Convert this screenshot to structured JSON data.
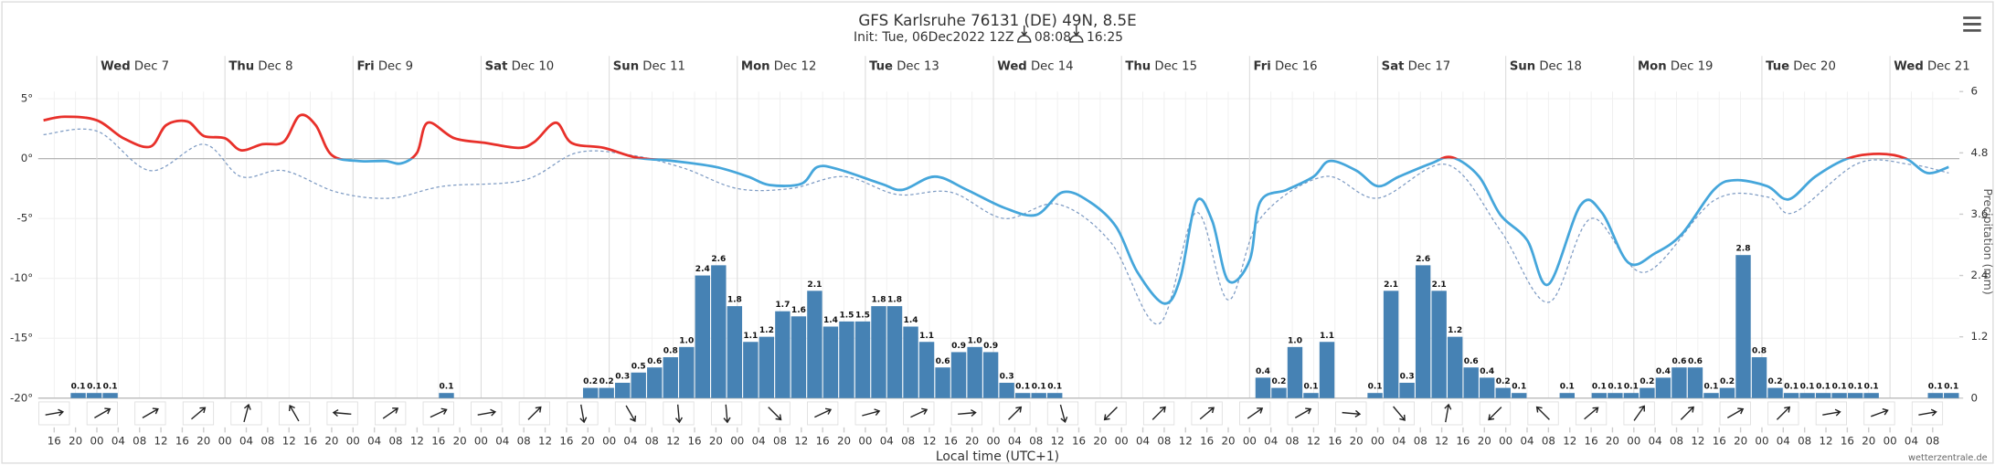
{
  "chart_data": {
    "type": "combo",
    "title": "GFS Karlsruhe 76131 (DE) 49N, 8.5E",
    "subtitle": "Init: Tue, 06Dec2022 12Z",
    "sunrise": "08:08",
    "sunset": "16:25",
    "x_label": "Local time (UTC+1)",
    "y2_label": "Precipitation (mm)",
    "credit": "wetterzentrale.de",
    "xlim": [
      -11,
      349
    ],
    "ylim": [
      -20,
      5.6
    ],
    "y2lim": [
      0,
      6
    ],
    "yticks": [
      {
        "value": 5,
        "label": "5°"
      },
      {
        "value": 0,
        "label": "0°"
      },
      {
        "value": -5,
        "label": "-5°"
      },
      {
        "value": -10,
        "label": "-10°"
      },
      {
        "value": -15,
        "label": "-15°"
      },
      {
        "value": -20,
        "label": "-20°"
      }
    ],
    "y2ticks": [
      0,
      1.2,
      2.4,
      3.6,
      4.8,
      6
    ],
    "day_ticks": [
      {
        "value": 0,
        "weekday": "Wed",
        "label": "Dec 7"
      },
      {
        "value": 24,
        "weekday": "Thu",
        "label": "Dec 8"
      },
      {
        "value": 48,
        "weekday": "Fri",
        "label": "Dec 9"
      },
      {
        "value": 72,
        "weekday": "Sat",
        "label": "Dec 10"
      },
      {
        "value": 96,
        "weekday": "Sun",
        "label": "Dec 11"
      },
      {
        "value": 120,
        "weekday": "Mon",
        "label": "Dec 12"
      },
      {
        "value": 144,
        "weekday": "Tue",
        "label": "Dec 13"
      },
      {
        "value": 168,
        "weekday": "Wed",
        "label": "Dec 14"
      },
      {
        "value": 192,
        "weekday": "Thu",
        "label": "Dec 15"
      },
      {
        "value": 216,
        "weekday": "Fri",
        "label": "Dec 16"
      },
      {
        "value": 240,
        "weekday": "Sat",
        "label": "Dec 17"
      },
      {
        "value": 264,
        "weekday": "Sun",
        "label": "Dec 18"
      },
      {
        "value": 288,
        "weekday": "Mon",
        "label": "Dec 19"
      },
      {
        "value": 312,
        "weekday": "Tue",
        "label": "Dec 20"
      },
      {
        "value": 336,
        "weekday": "Wed",
        "label": "Dec 21"
      }
    ],
    "xticks": [
      {
        "value": -8,
        "label": "16"
      },
      {
        "value": -4,
        "label": "20"
      },
      {
        "value": 0,
        "label": "00"
      },
      {
        "value": 4,
        "label": "04"
      },
      {
        "value": 8,
        "label": "08"
      },
      {
        "value": 12,
        "label": "12"
      },
      {
        "value": 16,
        "label": "16"
      },
      {
        "value": 20,
        "label": "20"
      },
      {
        "value": 24,
        "label": "00"
      },
      {
        "value": 28,
        "label": "04"
      },
      {
        "value": 32,
        "label": "08"
      },
      {
        "value": 36,
        "label": "12"
      },
      {
        "value": 40,
        "label": "16"
      },
      {
        "value": 44,
        "label": "20"
      },
      {
        "value": 48,
        "label": "00"
      },
      {
        "value": 52,
        "label": "04"
      },
      {
        "value": 56,
        "label": "08"
      },
      {
        "value": 60,
        "label": "12"
      },
      {
        "value": 64,
        "label": "16"
      },
      {
        "value": 68,
        "label": "20"
      },
      {
        "value": 72,
        "label": "00"
      },
      {
        "value": 76,
        "label": "04"
      },
      {
        "value": 80,
        "label": "08"
      },
      {
        "value": 84,
        "label": "12"
      },
      {
        "value": 88,
        "label": "16"
      },
      {
        "value": 92,
        "label": "20"
      },
      {
        "value": 96,
        "label": "00"
      },
      {
        "value": 100,
        "label": "04"
      },
      {
        "value": 104,
        "label": "08"
      },
      {
        "value": 108,
        "label": "12"
      },
      {
        "value": 112,
        "label": "16"
      },
      {
        "value": 116,
        "label": "20"
      },
      {
        "value": 120,
        "label": "00"
      },
      {
        "value": 124,
        "label": "04"
      },
      {
        "value": 128,
        "label": "08"
      },
      {
        "value": 132,
        "label": "12"
      },
      {
        "value": 136,
        "label": "16"
      },
      {
        "value": 140,
        "label": "20"
      },
      {
        "value": 144,
        "label": "00"
      },
      {
        "value": 148,
        "label": "04"
      },
      {
        "value": 152,
        "label": "08"
      },
      {
        "value": 156,
        "label": "12"
      },
      {
        "value": 160,
        "label": "16"
      },
      {
        "value": 164,
        "label": "20"
      },
      {
        "value": 168,
        "label": "00"
      },
      {
        "value": 172,
        "label": "04"
      },
      {
        "value": 176,
        "label": "08"
      },
      {
        "value": 180,
        "label": "12"
      },
      {
        "value": 184,
        "label": "16"
      },
      {
        "value": 188,
        "label": "20"
      },
      {
        "value": 192,
        "label": "00"
      },
      {
        "value": 196,
        "label": "04"
      },
      {
        "value": 200,
        "label": "08"
      },
      {
        "value": 204,
        "label": "12"
      },
      {
        "value": 208,
        "label": "16"
      },
      {
        "value": 212,
        "label": "20"
      },
      {
        "value": 216,
        "label": "00"
      },
      {
        "value": 220,
        "label": "04"
      },
      {
        "value": 224,
        "label": "08"
      },
      {
        "value": 228,
        "label": "12"
      },
      {
        "value": 232,
        "label": "16"
      },
      {
        "value": 236,
        "label": "20"
      },
      {
        "value": 240,
        "label": "00"
      },
      {
        "value": 244,
        "label": "04"
      },
      {
        "value": 248,
        "label": "08"
      },
      {
        "value": 252,
        "label": "12"
      },
      {
        "value": 256,
        "label": "16"
      },
      {
        "value": 260,
        "label": "20"
      },
      {
        "value": 264,
        "label": "00"
      },
      {
        "value": 268,
        "label": "04"
      },
      {
        "value": 272,
        "label": "08"
      },
      {
        "value": 276,
        "label": "12"
      },
      {
        "value": 280,
        "label": "16"
      },
      {
        "value": 284,
        "label": "20"
      },
      {
        "value": 288,
        "label": "00"
      },
      {
        "value": 292,
        "label": "04"
      },
      {
        "value": 296,
        "label": "08"
      },
      {
        "value": 300,
        "label": "12"
      },
      {
        "value": 304,
        "label": "16"
      },
      {
        "value": 308,
        "label": "20"
      },
      {
        "value": 312,
        "label": "00"
      },
      {
        "value": 316,
        "label": "04"
      },
      {
        "value": 320,
        "label": "08"
      },
      {
        "value": 324,
        "label": "12"
      },
      {
        "value": 328,
        "label": "16"
      },
      {
        "value": 332,
        "label": "20"
      },
      {
        "value": 336,
        "label": "00"
      },
      {
        "value": 340,
        "label": "04"
      },
      {
        "value": 344,
        "label": "08"
      }
    ],
    "grid": true,
    "series": [
      {
        "type": "line",
        "axis": "y",
        "color_above": "#e8302a",
        "color_below": "#45a6db",
        "x": [
          -10,
          -6,
          0,
          5,
          10,
          13,
          17,
          20,
          24,
          27,
          31,
          35,
          38,
          41,
          44,
          49,
          54,
          57,
          60,
          62,
          67,
          73,
          79,
          82,
          86,
          89,
          95,
          101,
          108,
          116,
          122,
          126,
          132,
          135,
          139,
          147,
          151,
          157,
          163,
          170,
          176,
          181,
          186,
          191,
          195,
          200,
          203,
          206,
          209,
          212,
          216,
          218,
          223,
          228,
          231,
          236,
          240,
          244,
          250,
          254,
          259,
          263,
          268,
          272,
          278,
          282,
          287,
          292,
          297,
          303,
          307,
          313,
          317,
          322,
          328,
          334,
          339,
          343,
          347
        ],
        "values": [
          3.2,
          3.5,
          3.2,
          1.7,
          1.0,
          2.8,
          3.1,
          1.9,
          1.7,
          0.7,
          1.2,
          1.4,
          3.6,
          2.8,
          0.3,
          -0.2,
          -0.2,
          -0.4,
          0.5,
          3.0,
          1.7,
          1.3,
          0.9,
          1.4,
          3.0,
          1.3,
          0.9,
          0.1,
          -0.2,
          -0.7,
          -1.5,
          -2.2,
          -2.1,
          -0.7,
          -0.9,
          -2.1,
          -2.6,
          -1.5,
          -2.6,
          -4.1,
          -4.7,
          -2.8,
          -3.6,
          -5.7,
          -9.5,
          -12.1,
          -10.0,
          -3.6,
          -5.2,
          -10.2,
          -8.5,
          -3.6,
          -2.6,
          -1.5,
          -0.2,
          -1.0,
          -2.3,
          -1.5,
          -0.4,
          0.1,
          -1.5,
          -4.7,
          -6.8,
          -10.5,
          -3.9,
          -4.5,
          -8.7,
          -7.9,
          -6.3,
          -2.6,
          -1.8,
          -2.3,
          -3.4,
          -1.5,
          0,
          0.4,
          0,
          -1.2,
          -0.7
        ]
      },
      {
        "type": "dashed-line",
        "axis": "y",
        "color": "#7f9cc4",
        "x": [
          -10,
          0,
          10,
          20,
          27,
          35,
          45,
          55,
          65,
          80,
          90,
          100,
          110,
          120,
          130,
          140,
          150,
          160,
          170,
          180,
          190,
          199,
          206,
          212,
          218,
          230,
          240,
          253,
          263,
          272,
          280,
          290,
          303,
          313,
          318,
          330,
          340,
          347
        ],
        "values": [
          2.0,
          2.3,
          -1.0,
          1.2,
          -1.5,
          -1.0,
          -2.8,
          -3.3,
          -2.3,
          -1.8,
          0.5,
          0.3,
          -0.8,
          -2.5,
          -2.5,
          -1.5,
          -3.0,
          -2.8,
          -5.0,
          -3.8,
          -7.0,
          -13.8,
          -4.5,
          -11.8,
          -5.0,
          -1.5,
          -3.3,
          -0.5,
          -6.0,
          -12.0,
          -5.0,
          -9.5,
          -3.5,
          -3.2,
          -4.5,
          -0.4,
          -0.5,
          -1.2
        ]
      },
      {
        "type": "bar",
        "axis": "y2",
        "color": "#4682b4",
        "bar_hours": 3,
        "x": [
          -5,
          -2,
          1,
          64,
          91,
          94,
          97,
          100,
          103,
          106,
          109,
          112,
          115,
          118,
          121,
          124,
          127,
          130,
          133,
          136,
          139,
          142,
          145,
          148,
          151,
          154,
          157,
          160,
          163,
          166,
          169,
          172,
          175,
          178,
          217,
          220,
          223,
          226,
          229,
          238,
          241,
          244,
          247,
          250,
          253,
          256,
          259,
          262,
          265,
          274,
          280,
          283,
          286,
          289,
          292,
          295,
          298,
          301,
          304,
          307,
          310,
          313,
          316,
          319,
          322,
          325,
          328,
          331,
          343,
          346
        ],
        "values": [
          0.1,
          0.1,
          0.1,
          0.1,
          0.2,
          0.2,
          0.3,
          0.5,
          0.6,
          0.8,
          1.0,
          2.4,
          2.6,
          1.8,
          1.1,
          1.2,
          1.7,
          1.6,
          2.1,
          1.4,
          1.5,
          1.5,
          1.8,
          1.8,
          1.4,
          1.1,
          0.6,
          0.9,
          1.0,
          0.9,
          0.3,
          0.1,
          0.1,
          0.1,
          0.4,
          0.2,
          1.0,
          0.1,
          1.1,
          0.1,
          2.1,
          0.3,
          2.6,
          2.1,
          1.2,
          0.6,
          0.4,
          0.2,
          0.1,
          0.1,
          0.1,
          0.1,
          0.1,
          0.2,
          0.4,
          0.6,
          0.6,
          0.1,
          0.2,
          2.8,
          0.8,
          0.2,
          0.1,
          0.1,
          0.1,
          0.1,
          0.1,
          0.1,
          0.1,
          0.1
        ],
        "value_labels": [
          "0.1",
          "0.1",
          "0.1",
          "0.1",
          "0.2",
          "0.2",
          "0.3",
          "0.5",
          "0.6",
          "0.8",
          "1.0",
          "2.4",
          "2.6",
          "1.8",
          "1.1",
          "1.2",
          "1.7",
          "1.6",
          "2.1",
          "1.4",
          "1.5",
          "1.5",
          "1.8",
          "1.8",
          "1.4",
          "1.1",
          "0.6",
          "0.9",
          "1.0",
          "0.9",
          "0.3",
          "0.1",
          "0.1",
          "0.1",
          "0.4",
          "0.2",
          "1.0",
          "0.1",
          "1.1",
          "0.1",
          "2.1",
          "0.3",
          "2.6",
          "2.1",
          "1.2",
          "0.6",
          "0.4",
          "0.2",
          "0.1",
          "0.1",
          "0.1",
          "0.1",
          "0.1",
          "0.2",
          "0.4",
          "0.6",
          "0.6",
          "0.1",
          "0.2",
          "2.8",
          "0.8",
          "0.2",
          "0.1",
          "0.1",
          "0.1",
          "0.1",
          "0.1",
          "0.1",
          "0.1",
          "0.1"
        ]
      }
    ],
    "wind_direction": {
      "color": "#222222",
      "x": [
        -8,
        1,
        10,
        19,
        28,
        37,
        46,
        55,
        64,
        73,
        82,
        91,
        100,
        109,
        118,
        127,
        136,
        145,
        154,
        163,
        172,
        181,
        190,
        199,
        208,
        217,
        226,
        235,
        244,
        253,
        262,
        271,
        280,
        289,
        298,
        307,
        316,
        325,
        334,
        343
      ],
      "values": [
        80,
        60,
        60,
        50,
        15,
        330,
        275,
        55,
        65,
        80,
        45,
        170,
        150,
        175,
        175,
        135,
        65,
        75,
        65,
        85,
        45,
        165,
        225,
        45,
        50,
        55,
        60,
        95,
        140,
        10,
        225,
        315,
        50,
        35,
        45,
        60,
        45,
        80,
        70,
        80
      ]
    }
  }
}
